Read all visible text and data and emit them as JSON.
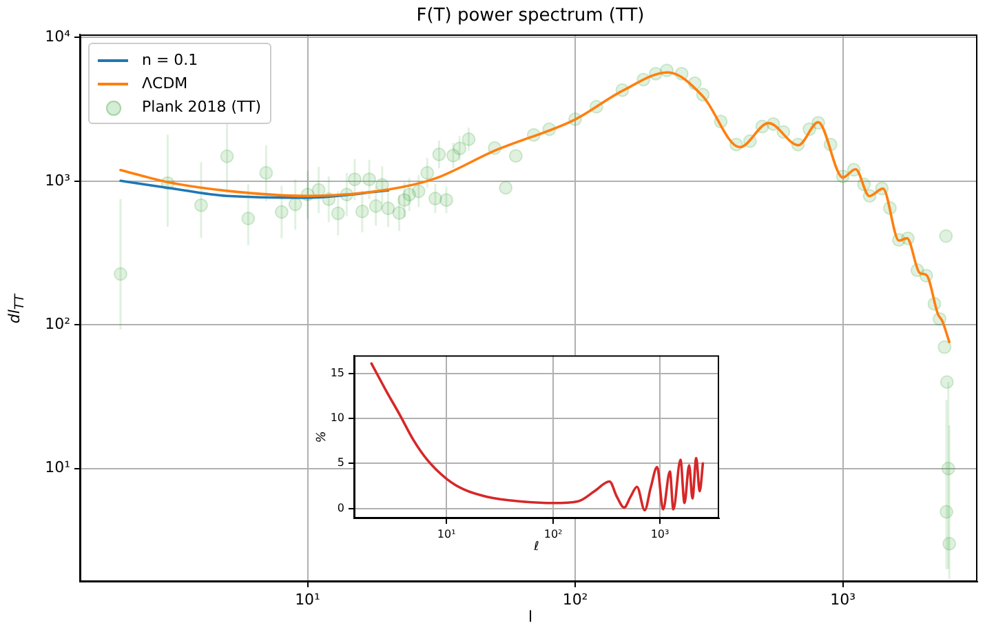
{
  "chart_data": [
    {
      "type": "line",
      "title": "F(T) power spectrum (TT)",
      "xlabel": "l",
      "ylabel": "dl$_{TT}$",
      "log": "xy",
      "grid": true,
      "legend": "top left",
      "xlim": [
        1.41,
        3185
      ],
      "ylim": [
        1.63,
        10500
      ],
      "xticks": [
        {
          "value": 10,
          "label": "10¹"
        },
        {
          "value": 100,
          "label": "10²"
        },
        {
          "value": 1000,
          "label": "10³"
        }
      ],
      "yticks": [
        {
          "value": 10,
          "label": "10¹"
        },
        {
          "value": 100,
          "label": "10²"
        },
        {
          "value": 1000,
          "label": "10³"
        },
        {
          "value": 10000,
          "label": "10⁴"
        }
      ],
      "series": [
        {
          "name": "n = 0.1",
          "color": "#1f77b4",
          "x": [
            2,
            3,
            5,
            10,
            20
          ],
          "values": [
            1007,
            900,
            789,
            767,
            862
          ]
        },
        {
          "name": "ΛCDM",
          "color": "#ff7f0e",
          "x": [
            2,
            3,
            5,
            10,
            20,
            30,
            50,
            100,
            150,
            222,
            300,
            412,
            528,
            682,
            809,
            1000,
            1117,
            1256,
            1413,
            1622,
            1738,
            1938,
            2055,
            2267,
            2356,
            2500
          ],
          "values": [
            1195,
            985,
            857,
            789,
            875,
            1045,
            1630,
            2690,
            4250,
            5720,
            3900,
            1725,
            2535,
            1780,
            2570,
            1062,
            1212,
            788,
            888,
            386,
            401,
            230,
            222,
            119,
            106,
            76
          ]
        },
        {
          "name": "Plank 2018 (TT)",
          "type": "scatter",
          "marker": "circle",
          "color": "#2ca02c",
          "x": [
            2,
            3,
            4,
            5,
            6,
            7,
            8,
            9,
            10,
            11,
            12,
            13,
            14,
            15,
            16,
            17,
            18,
            19,
            20,
            22,
            23,
            24,
            26,
            28,
            30,
            31,
            33,
            35,
            37,
            40,
            50,
            55,
            60,
            70,
            80,
            100,
            120,
            150,
            180,
            200,
            220,
            250,
            280,
            300,
            350,
            400,
            450,
            500,
            550,
            600,
            680,
            750,
            810,
            900,
            1000,
            1100,
            1200,
            1260,
            1400,
            1500,
            1620,
            1750,
            1900,
            2050,
            2200,
            2300,
            2400,
            2430,
            2440,
            2450,
            2480,
            2500
          ],
          "values": [
            226,
            970,
            681,
            1490,
            550,
            1143,
            611,
            690,
            807,
            870,
            750,
            597,
            807,
            1030,
            616,
            1030,
            671,
            942,
            647,
            600,
            740,
            807,
            851,
            1143,
            757,
            1535,
            740,
            1510,
            1690,
            1960,
            1700,
            900,
            1500,
            2100,
            2300,
            2700,
            3300,
            4300,
            5100,
            5600,
            5900,
            5600,
            4800,
            4000,
            2600,
            1800,
            1900,
            2400,
            2500,
            2200,
            1800,
            2300,
            2550,
            1800,
            1080,
            1200,
            950,
            790,
            890,
            650,
            390,
            400,
            240,
            220,
            140,
            110,
            70,
            415,
            5,
            40,
            10,
            3
          ],
          "errors": [
            [
              93,
              750
            ],
            [
              482,
              2110
            ],
            [
              404,
              1355
            ],
            [
              830,
              2630
            ],
            [
              359,
              955
            ],
            [
              723,
              1780
            ],
            [
              400,
              930
            ],
            [
              460,
              1030
            ],
            [
              550,
              1180
            ],
            [
              600,
              1260
            ],
            [
              520,
              1080
            ],
            [
              420,
              850
            ],
            [
              570,
              1140
            ],
            [
              740,
              1430
            ],
            [
              440,
              860
            ],
            [
              750,
              1410
            ],
            [
              490,
              920
            ],
            [
              700,
              1270
            ],
            [
              480,
              870
            ],
            [
              450,
              800
            ],
            [
              560,
              980
            ],
            [
              620,
              1050
            ],
            [
              660,
              1100
            ],
            [
              900,
              1450
            ],
            [
              600,
              960
            ],
            [
              1230,
              1920
            ],
            [
              600,
              920
            ],
            [
              1230,
              1850
            ],
            [
              1390,
              2060
            ],
            [
              1630,
              2360
            ],
            null,
            null,
            null,
            null,
            null,
            null,
            null,
            null,
            null,
            null,
            null,
            null,
            null,
            null,
            null,
            null,
            null,
            null,
            null,
            null,
            null,
            null,
            null,
            null,
            null,
            null,
            null,
            null,
            null,
            null,
            null,
            null,
            null,
            null,
            null,
            null,
            null,
            null,
            [
              2,
              30
            ],
            null,
            [
              2,
              40
            ],
            [
              1.7,
              20
            ]
          ]
        }
      ]
    },
    {
      "type": "line",
      "xlabel": "ℓ",
      "ylabel": "%",
      "log": "x",
      "grid": true,
      "xlim": [
        1.36,
        3590
      ],
      "ylim": [
        -1.1,
        17
      ],
      "xticks": [
        {
          "value": 10,
          "label": "10¹"
        },
        {
          "value": 100,
          "label": "10²"
        },
        {
          "value": 1000,
          "label": "10³"
        }
      ],
      "yticks": [
        0,
        5,
        10,
        15
      ],
      "series": [
        {
          "color": "#d62728",
          "x": [
            1.98,
            2.71,
            3.65,
            4.9,
            6.6,
            10,
            14.6,
            23.9,
            47.6,
            100,
            172,
            243,
            337,
            395,
            462,
            531,
            610,
            721,
            820,
            942,
            1072,
            1241,
            1337,
            1560,
            1700,
            1880,
            2020,
            2190,
            2360,
            2530
          ],
          "values": [
            16.1,
            13.1,
            10.4,
            7.6,
            5.4,
            3.3,
            2.1,
            1.3,
            0.8,
            0.6,
            0.8,
            1.9,
            3.0,
            1.3,
            0.1,
            1.3,
            2.4,
            -0.2,
            2.3,
            4.6,
            -0.1,
            4.1,
            -0.1,
            5.4,
            0.6,
            4.8,
            1.1,
            5.6,
            1.9,
            5.0
          ]
        }
      ]
    }
  ]
}
